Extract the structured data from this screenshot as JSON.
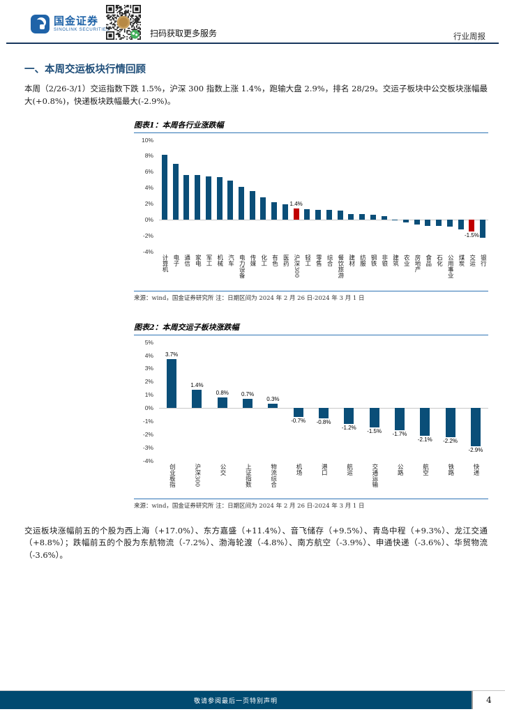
{
  "header": {
    "brand_name": "国金证券",
    "brand_sub": "SINOLINK SECURITIES",
    "qr_caption": "扫码获取更多服务",
    "doc_type": "行业周报"
  },
  "section": {
    "heading": "一、本周交运板块行情回顾",
    "paragraph1": "本周（2/26-3/1）交运指数下跌 1.5%，沪深 300 指数上涨 1.4%，跑输大盘 2.9%，排名 28/29。交运子板块中公交板块涨幅最大(+0.8%)，快递板块跌幅最大(-2.9%)。",
    "paragraph2": "交运板块涨幅前五的个股为西上海（+17.0%）、东方嘉盛（+11.4%）、音飞储存（+9.5%）、青岛中程（+9.3%）、龙江交通（+8.8%）；跌幅前五的个股为东航物流（-7.2%）、渤海轮渡（-4.8%）、南方航空（-3.9%）、申通快递（-3.6%）、华贸物流（-3.6%）。"
  },
  "chart_data": [
    {
      "type": "bar",
      "title": "图表1：本周各行业涨跌幅",
      "categories": [
        "计算机",
        "电子",
        "通信",
        "家电",
        "军工",
        "机械",
        "汽车",
        "电力设备",
        "传媒",
        "化工",
        "有色",
        "医药",
        "沪深300",
        "轻工",
        "零售",
        "综合",
        "餐饮旅游",
        "建材",
        "纺服",
        "钢铁",
        "非银",
        "建筑",
        "农业",
        "房地产",
        "食品",
        "石化",
        "公用事业",
        "煤炭",
        "交运",
        "银行"
      ],
      "values": [
        8.1,
        7.0,
        5.6,
        5.6,
        5.4,
        5.3,
        4.9,
        4.1,
        3.6,
        2.8,
        2.2,
        1.9,
        1.4,
        1.3,
        1.2,
        1.2,
        1.1,
        0.7,
        0.7,
        0.6,
        0.4,
        -0.1,
        -0.4,
        -0.6,
        -0.8,
        -0.8,
        -0.9,
        -1.2,
        -1.5,
        -2.3
      ],
      "highlight_indices": [
        12,
        28
      ],
      "data_labels": {
        "12": "1.4%",
        "28": "-1.5%"
      },
      "ylim": [
        -4,
        10
      ],
      "yticks": [
        10,
        8,
        6,
        4,
        2,
        0,
        -2,
        -4
      ],
      "grid": false,
      "legend": "none",
      "source": "来源：wind，国金证券研究所  注：日期区间为 2024 年 2 月 26 日-2024 年 3 月 1 日"
    },
    {
      "type": "bar",
      "title": "图表2：本周交运子板块涨跌幅",
      "categories": [
        "创业板指",
        "沪深300",
        "公交",
        "上证指数",
        "物流综合",
        "机场",
        "港口",
        "航运",
        "交通运输",
        "公路",
        "航空",
        "铁路",
        "快递"
      ],
      "values": [
        3.7,
        1.4,
        0.8,
        0.7,
        0.3,
        -0.7,
        -0.8,
        -1.2,
        -1.5,
        -1.7,
        -2.1,
        -2.2,
        -2.9
      ],
      "highlight_indices": [],
      "data_labels": {
        "0": "3.7%",
        "1": "1.4%",
        "2": "0.8%",
        "3": "0.7%",
        "4": "0.3%",
        "5": "-0.7%",
        "6": "-0.8%",
        "7": "-1.2%",
        "8": "-1.5%",
        "9": "-1.7%",
        "10": "-2.1%",
        "11": "-2.2%",
        "12": "-2.9%"
      },
      "ylim": [
        -4,
        5
      ],
      "yticks": [
        5,
        4,
        3,
        2,
        1,
        0,
        -1,
        -2,
        -3,
        -4
      ],
      "grid": false,
      "legend": "none",
      "source": "来源：wind，国金证券研究所  注：日期区间为 2024 年 2 月 26 日-2024 年 3 月 1 日"
    }
  ],
  "footer": {
    "disclaimer": "敬请参阅最后一页特别声明",
    "page_number": "4"
  },
  "colors": {
    "bar_blue": "#0a4e78",
    "bar_red": "#c00000",
    "brand_blue": "#1f63a8",
    "heading_blue": "#1f4e79",
    "rule_blue": "#2e74b5",
    "footer_blue": "#004a70"
  }
}
